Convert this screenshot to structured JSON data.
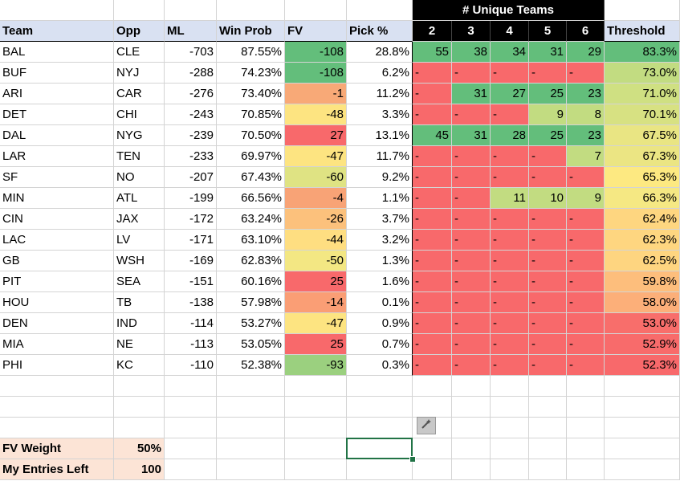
{
  "header": {
    "unique_teams_title": "# Unique Teams",
    "columns": [
      "Team",
      "Opp",
      "ML",
      "Win Prob",
      "FV",
      "Pick %"
    ],
    "unique_cols": [
      "2",
      "3",
      "4",
      "5",
      "6"
    ],
    "threshold": "Threshold"
  },
  "rows": [
    {
      "team": "BAL",
      "opp": "CLE",
      "ml": "-703",
      "win": "87.55%",
      "fv": "-108",
      "pick": "28.8%",
      "u": [
        "55",
        "38",
        "34",
        "31",
        "29"
      ],
      "thr": "83.3%"
    },
    {
      "team": "BUF",
      "opp": "NYJ",
      "ml": "-288",
      "win": "74.23%",
      "fv": "-108",
      "pick": "6.2%",
      "u": [
        "-",
        "-",
        "-",
        "-",
        "-"
      ],
      "thr": "73.0%"
    },
    {
      "team": "ARI",
      "opp": "CAR",
      "ml": "-276",
      "win": "73.40%",
      "fv": "-1",
      "pick": "11.2%",
      "u": [
        "-",
        "31",
        "27",
        "25",
        "23"
      ],
      "thr": "71.0%"
    },
    {
      "team": "DET",
      "opp": "CHI",
      "ml": "-243",
      "win": "70.85%",
      "fv": "-48",
      "pick": "3.3%",
      "u": [
        "-",
        "-",
        "-",
        "9",
        "8"
      ],
      "thr": "70.1%"
    },
    {
      "team": "DAL",
      "opp": "NYG",
      "ml": "-239",
      "win": "70.50%",
      "fv": "27",
      "pick": "13.1%",
      "u": [
        "45",
        "31",
        "28",
        "25",
        "23"
      ],
      "thr": "67.5%"
    },
    {
      "team": "LAR",
      "opp": "TEN",
      "ml": "-233",
      "win": "69.97%",
      "fv": "-47",
      "pick": "11.7%",
      "u": [
        "-",
        "-",
        "-",
        "-",
        "7"
      ],
      "thr": "67.3%"
    },
    {
      "team": "SF",
      "opp": "NO",
      "ml": "-207",
      "win": "67.43%",
      "fv": "-60",
      "pick": "9.2%",
      "u": [
        "-",
        "-",
        "-",
        "-",
        "-"
      ],
      "thr": "65.3%"
    },
    {
      "team": "MIN",
      "opp": "ATL",
      "ml": "-199",
      "win": "66.56%",
      "fv": "-4",
      "pick": "1.1%",
      "u": [
        "-",
        "-",
        "11",
        "10",
        "9"
      ],
      "thr": "66.3%"
    },
    {
      "team": "CIN",
      "opp": "JAX",
      "ml": "-172",
      "win": "63.24%",
      "fv": "-26",
      "pick": "3.7%",
      "u": [
        "-",
        "-",
        "-",
        "-",
        "-"
      ],
      "thr": "62.4%"
    },
    {
      "team": "LAC",
      "opp": "LV",
      "ml": "-171",
      "win": "63.10%",
      "fv": "-44",
      "pick": "3.2%",
      "u": [
        "-",
        "-",
        "-",
        "-",
        "-"
      ],
      "thr": "62.3%"
    },
    {
      "team": "GB",
      "opp": "WSH",
      "ml": "-169",
      "win": "62.83%",
      "fv": "-50",
      "pick": "1.3%",
      "u": [
        "-",
        "-",
        "-",
        "-",
        "-"
      ],
      "thr": "62.5%"
    },
    {
      "team": "PIT",
      "opp": "SEA",
      "ml": "-151",
      "win": "60.16%",
      "fv": "25",
      "pick": "1.6%",
      "u": [
        "-",
        "-",
        "-",
        "-",
        "-"
      ],
      "thr": "59.8%"
    },
    {
      "team": "HOU",
      "opp": "TB",
      "ml": "-138",
      "win": "57.98%",
      "fv": "-14",
      "pick": "0.1%",
      "u": [
        "-",
        "-",
        "-",
        "-",
        "-"
      ],
      "thr": "58.0%"
    },
    {
      "team": "DEN",
      "opp": "IND",
      "ml": "-114",
      "win": "53.27%",
      "fv": "-47",
      "pick": "0.9%",
      "u": [
        "-",
        "-",
        "-",
        "-",
        "-"
      ],
      "thr": "53.0%"
    },
    {
      "team": "MIA",
      "opp": "NE",
      "ml": "-113",
      "win": "53.05%",
      "fv": "25",
      "pick": "0.7%",
      "u": [
        "-",
        "-",
        "-",
        "-",
        "-"
      ],
      "thr": "52.9%"
    },
    {
      "team": "PHI",
      "opp": "KC",
      "ml": "-110",
      "win": "52.38%",
      "fv": "-93",
      "pick": "0.3%",
      "u": [
        "-",
        "-",
        "-",
        "-",
        "-"
      ],
      "thr": "52.3%"
    }
  ],
  "fv_colors": [
    "#63be7b",
    "#63be7b",
    "#f8a977",
    "#fde481",
    "#f8696b",
    "#fde481",
    "#dfe383",
    "#f8a376",
    "#fcc17c",
    "#fede81",
    "#f3e783",
    "#f8696b",
    "#fa9e75",
    "#fde481",
    "#f8696b",
    "#9bd07f"
  ],
  "thr_colors": [
    "#63be7b",
    "#c2dc81",
    "#cfe082",
    "#d7e182",
    "#e9e583",
    "#ebe583",
    "#fde981",
    "#f5e883",
    "#fed680",
    "#fed680",
    "#fed580",
    "#fdbe7c",
    "#fcaf79",
    "#f86e6b",
    "#f86b6b",
    "#f8696b"
  ],
  "settings": {
    "fv_weight_label": "FV Weight",
    "fv_weight_value": "50%",
    "entries_label": "My Entries Left",
    "entries_value": "100"
  },
  "icons": {
    "quick_analysis": "quick-analysis-icon"
  },
  "colors": {
    "red": "#f8696b",
    "green": "#63be7b",
    "yellow_green": "#c2dc81",
    "header_blue": "#d9e1f2",
    "peach": "#fce4d6",
    "select_green": "#217346"
  }
}
